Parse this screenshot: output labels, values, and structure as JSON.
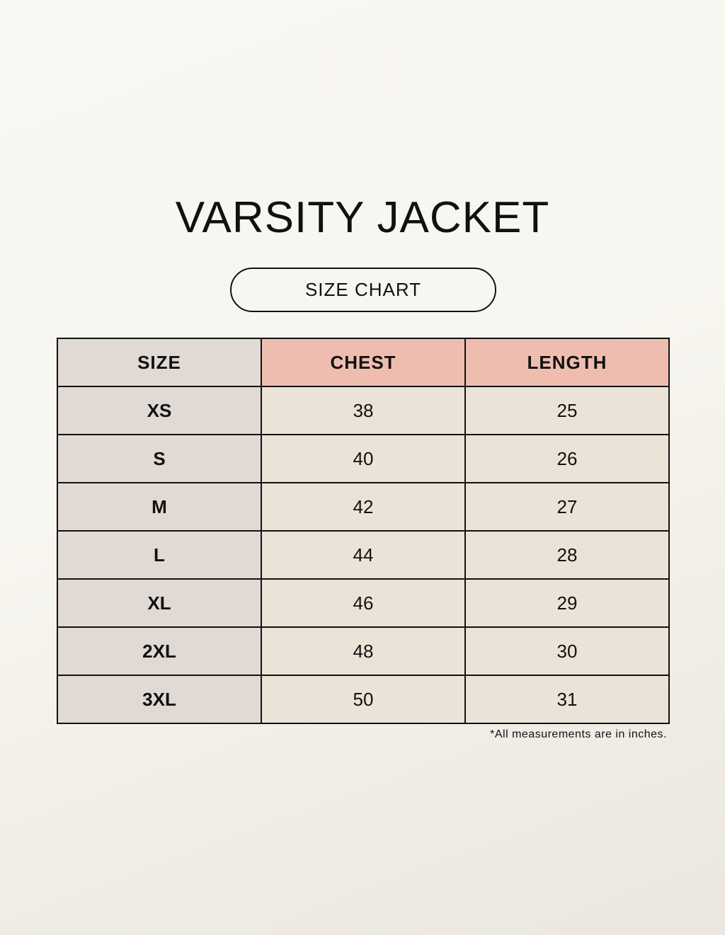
{
  "title": "VARSITY JACKET",
  "subtitle": "SIZE CHART",
  "table": {
    "headers": [
      "SIZE",
      "CHEST",
      "LENGTH"
    ],
    "rows": [
      [
        "XS",
        "38",
        "25"
      ],
      [
        "S",
        "40",
        "26"
      ],
      [
        "M",
        "42",
        "27"
      ],
      [
        "L",
        "44",
        "28"
      ],
      [
        "XL",
        "46",
        "29"
      ],
      [
        "2XL",
        "48",
        "30"
      ],
      [
        "3XL",
        "50",
        "31"
      ]
    ]
  },
  "note": "*All measurements are in inches.",
  "colors": {
    "size_column": "#e0d9d4",
    "header_accent": "#efbdb0",
    "value_cells": "#ebe3d8"
  }
}
